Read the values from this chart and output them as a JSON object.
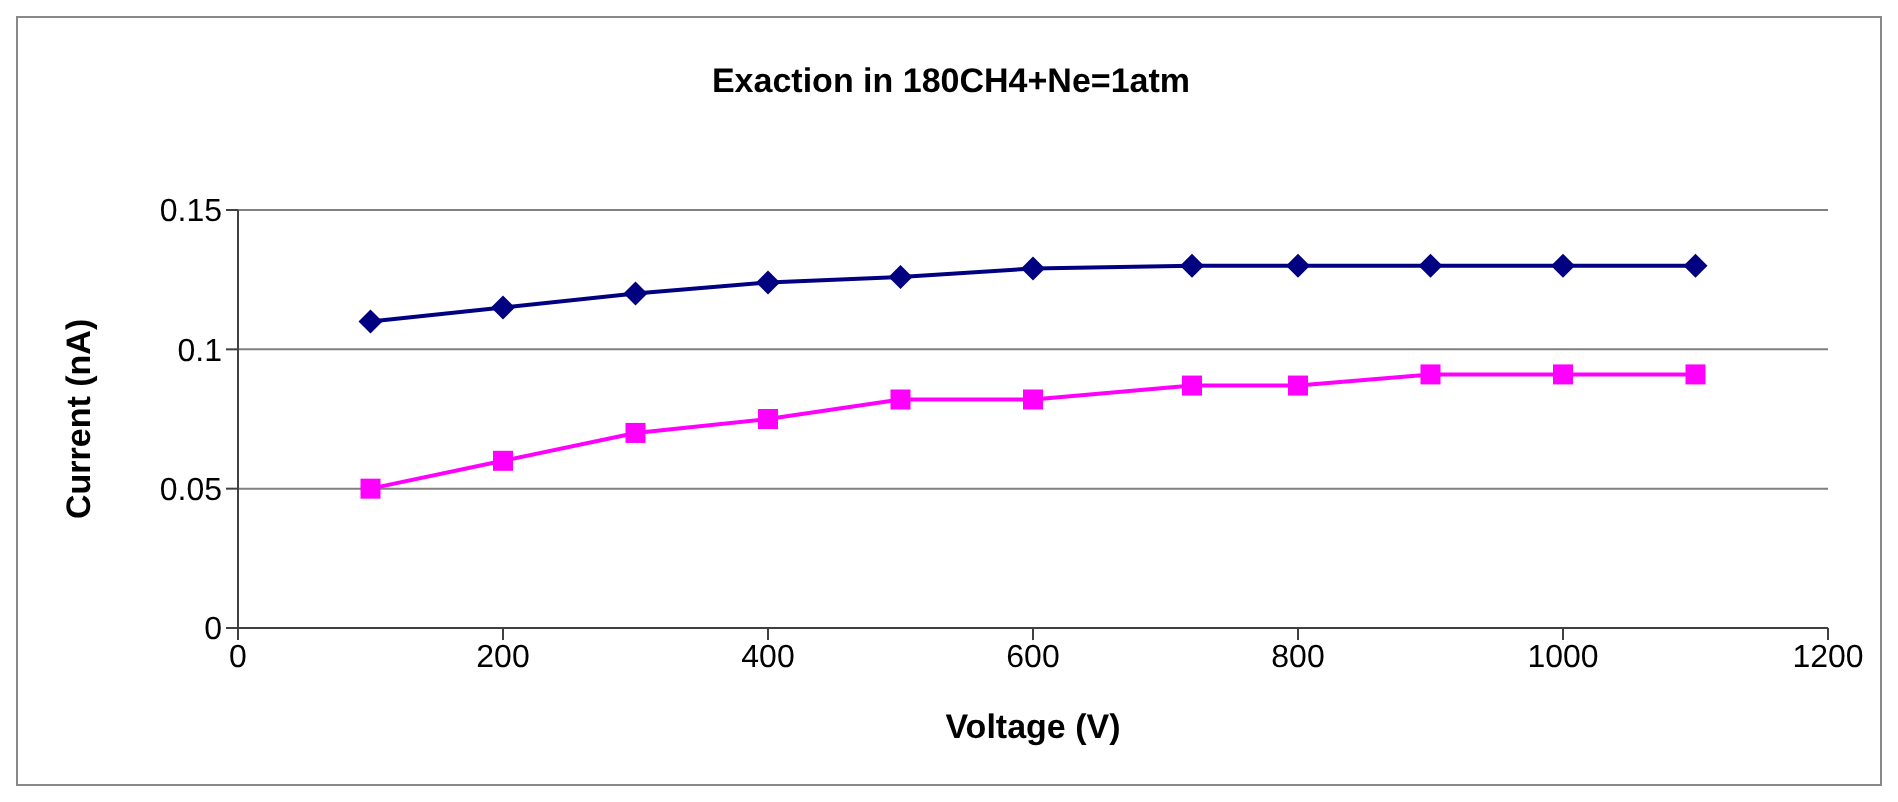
{
  "chart_data": {
    "type": "line",
    "title": "Exaction in 180CH4+Ne=1atm",
    "xlabel": "Voltage (V)",
    "ylabel": "Current (nA)",
    "xlim": [
      0,
      1200
    ],
    "xticks": [
      0,
      200,
      400,
      600,
      800,
      1000,
      1200
    ],
    "ylim": [
      0,
      0.15
    ],
    "yticks": [
      0,
      0.05,
      0.1,
      0.15
    ],
    "grid": "y",
    "legend": false,
    "series": [
      {
        "color": "#000080",
        "marker": "diamond",
        "x": [
          100,
          200,
          300,
          400,
          500,
          600,
          720,
          800,
          900,
          1000,
          1100
        ],
        "values": [
          0.11,
          0.115,
          0.12,
          0.124,
          0.126,
          0.129,
          0.13,
          0.13,
          0.13,
          0.13,
          0.13
        ]
      },
      {
        "color": "#ff00ff",
        "marker": "square",
        "x": [
          100,
          200,
          300,
          400,
          500,
          600,
          720,
          800,
          900,
          1000,
          1100
        ],
        "values": [
          0.05,
          0.06,
          0.07,
          0.075,
          0.082,
          0.082,
          0.087,
          0.087,
          0.091,
          0.091,
          0.091
        ]
      }
    ]
  }
}
